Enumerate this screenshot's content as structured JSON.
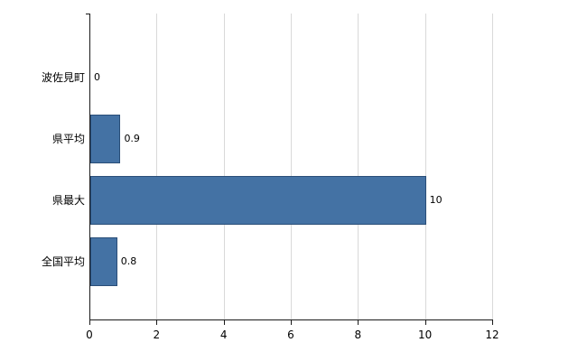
{
  "chart_data": {
    "type": "bar",
    "orientation": "horizontal",
    "title": "",
    "xlabel": "",
    "ylabel": "",
    "categories": [
      "波佐見町",
      "県平均",
      "県最大",
      "全国平均"
    ],
    "values": [
      0,
      0.9,
      10,
      0.8
    ],
    "value_labels": [
      "0",
      "0.9",
      "10",
      "0.8"
    ],
    "xlim": [
      0,
      12
    ],
    "xticks": [
      "0",
      "2",
      "4",
      "6",
      "8",
      "10",
      "12"
    ],
    "xtick_values": [
      0,
      2,
      4,
      6,
      8,
      10,
      12
    ],
    "grid": true,
    "legend": "none",
    "bar_color": "#4472a4",
    "bar_border_color": "#2a4e78",
    "axis_color": "#1a1a1a",
    "grid_color": "#d9d9d9",
    "background_color": "#ffffff"
  }
}
